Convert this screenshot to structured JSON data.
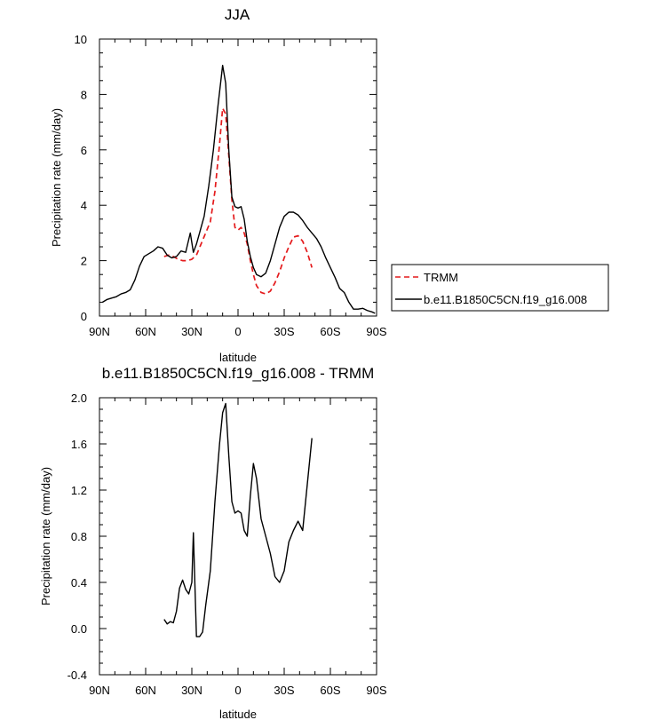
{
  "chart_data": [
    {
      "type": "line",
      "title": "JJA",
      "xlabel": "latitude",
      "ylabel": "Precipitation rate (mm/day)",
      "xlim": [
        90,
        -90
      ],
      "ylim": [
        0,
        10
      ],
      "x_ticks": [
        {
          "value": 90,
          "label": "90N"
        },
        {
          "value": 60,
          "label": "60N"
        },
        {
          "value": 30,
          "label": "30N"
        },
        {
          "value": 0,
          "label": "0"
        },
        {
          "value": -30,
          "label": "30S"
        },
        {
          "value": -60,
          "label": "60S"
        },
        {
          "value": -90,
          "label": "90S"
        }
      ],
      "y_ticks": [
        {
          "value": 0,
          "label": "0"
        },
        {
          "value": 2,
          "label": "2"
        },
        {
          "value": 4,
          "label": "4"
        },
        {
          "value": 6,
          "label": "6"
        },
        {
          "value": 8,
          "label": "8"
        },
        {
          "value": 10,
          "label": "10"
        }
      ],
      "legend": {
        "position": "right",
        "entries": [
          "TRMM",
          "b.e11.B1850C5CN.f19_g16.008"
        ]
      },
      "series": [
        {
          "name": "TRMM",
          "color": "#e41a1c",
          "dash": true,
          "x": [
            48,
            45,
            42,
            39,
            36,
            33,
            30,
            27,
            24,
            21,
            18,
            15,
            12,
            10,
            8,
            6,
            4,
            2,
            0,
            -2,
            -4,
            -6,
            -8,
            -10,
            -12,
            -15,
            -18,
            -21,
            -24,
            -27,
            -30,
            -33,
            -36,
            -39,
            -42,
            -45,
            -48
          ],
          "y": [
            2.15,
            2.2,
            2.15,
            2.05,
            2.0,
            2.0,
            2.05,
            2.2,
            2.6,
            3.0,
            3.4,
            4.5,
            6.2,
            7.5,
            7.3,
            5.8,
            4.2,
            3.2,
            3.1,
            3.2,
            3.0,
            2.6,
            2.0,
            1.5,
            1.1,
            0.85,
            0.8,
            0.9,
            1.2,
            1.6,
            2.1,
            2.5,
            2.85,
            2.9,
            2.7,
            2.3,
            1.75
          ]
        },
        {
          "name": "b.e11.B1850C5CN.f19_g16.008",
          "color": "#000000",
          "dash": false,
          "x": [
            88,
            85,
            82,
            79,
            76,
            73,
            70,
            67,
            64,
            61,
            58,
            55,
            52,
            49,
            46,
            43,
            40,
            37,
            34,
            31,
            29,
            27,
            25,
            22,
            19,
            16,
            13,
            10,
            8,
            6,
            4,
            2,
            0,
            -2,
            -4,
            -6,
            -8,
            -10,
            -12,
            -15,
            -18,
            -21,
            -24,
            -27,
            -30,
            -33,
            -36,
            -39,
            -42,
            -45,
            -48,
            -51,
            -54,
            -57,
            -60,
            -63,
            -66,
            -69,
            -72,
            -75,
            -78,
            -81,
            -84,
            -87,
            -89
          ],
          "y": [
            0.5,
            0.6,
            0.65,
            0.7,
            0.8,
            0.85,
            0.95,
            1.3,
            1.8,
            2.15,
            2.25,
            2.35,
            2.5,
            2.45,
            2.2,
            2.1,
            2.15,
            2.35,
            2.3,
            3.0,
            2.3,
            2.6,
            3.0,
            3.6,
            4.7,
            6.0,
            7.6,
            9.05,
            8.4,
            6.0,
            4.3,
            3.95,
            3.9,
            3.95,
            3.5,
            2.7,
            2.15,
            1.75,
            1.5,
            1.42,
            1.55,
            2.0,
            2.6,
            3.2,
            3.6,
            3.75,
            3.75,
            3.65,
            3.45,
            3.2,
            3.0,
            2.8,
            2.5,
            2.1,
            1.75,
            1.4,
            1.0,
            0.85,
            0.5,
            0.25,
            0.25,
            0.28,
            0.2,
            0.15,
            0.1
          ]
        }
      ]
    },
    {
      "type": "line",
      "title": "b.e11.B1850C5CN.f19_g16.008 - TRMM",
      "xlabel": "latitude",
      "ylabel": "Precipitation rate (mm/day)",
      "xlim": [
        90,
        -90
      ],
      "ylim": [
        -0.4,
        2.0
      ],
      "x_ticks": [
        {
          "value": 90,
          "label": "90N"
        },
        {
          "value": 60,
          "label": "60N"
        },
        {
          "value": 30,
          "label": "30N"
        },
        {
          "value": 0,
          "label": "0"
        },
        {
          "value": -30,
          "label": "30S"
        },
        {
          "value": -60,
          "label": "60S"
        },
        {
          "value": -90,
          "label": "90S"
        }
      ],
      "y_ticks": [
        {
          "value": -0.4,
          "label": "-0.4"
        },
        {
          "value": 0.0,
          "label": "0.0"
        },
        {
          "value": 0.4,
          "label": "0.4"
        },
        {
          "value": 0.8,
          "label": "0.8"
        },
        {
          "value": 1.2,
          "label": "1.2"
        },
        {
          "value": 1.6,
          "label": "1.6"
        },
        {
          "value": 2.0,
          "label": "2.0"
        }
      ],
      "series": [
        {
          "color": "#000000",
          "dash": false,
          "x": [
            48,
            46,
            44,
            42,
            40,
            38,
            36,
            34,
            32,
            30,
            29,
            27,
            25,
            23,
            21,
            18,
            15,
            12,
            10,
            8,
            6,
            4,
            2,
            0,
            -2,
            -4,
            -6,
            -8,
            -10,
            -12,
            -15,
            -18,
            -21,
            -24,
            -27,
            -30,
            -33,
            -36,
            -39,
            -42,
            -45,
            -48
          ],
          "y": [
            0.08,
            0.04,
            0.06,
            0.05,
            0.15,
            0.35,
            0.42,
            0.34,
            0.3,
            0.4,
            0.83,
            -0.07,
            -0.07,
            -0.03,
            0.2,
            0.5,
            1.1,
            1.6,
            1.87,
            1.95,
            1.5,
            1.1,
            1.0,
            1.02,
            1.0,
            0.85,
            0.8,
            1.15,
            1.43,
            1.3,
            0.95,
            0.8,
            0.65,
            0.45,
            0.4,
            0.5,
            0.75,
            0.85,
            0.93,
            0.85,
            1.25,
            1.65
          ]
        }
      ]
    }
  ]
}
